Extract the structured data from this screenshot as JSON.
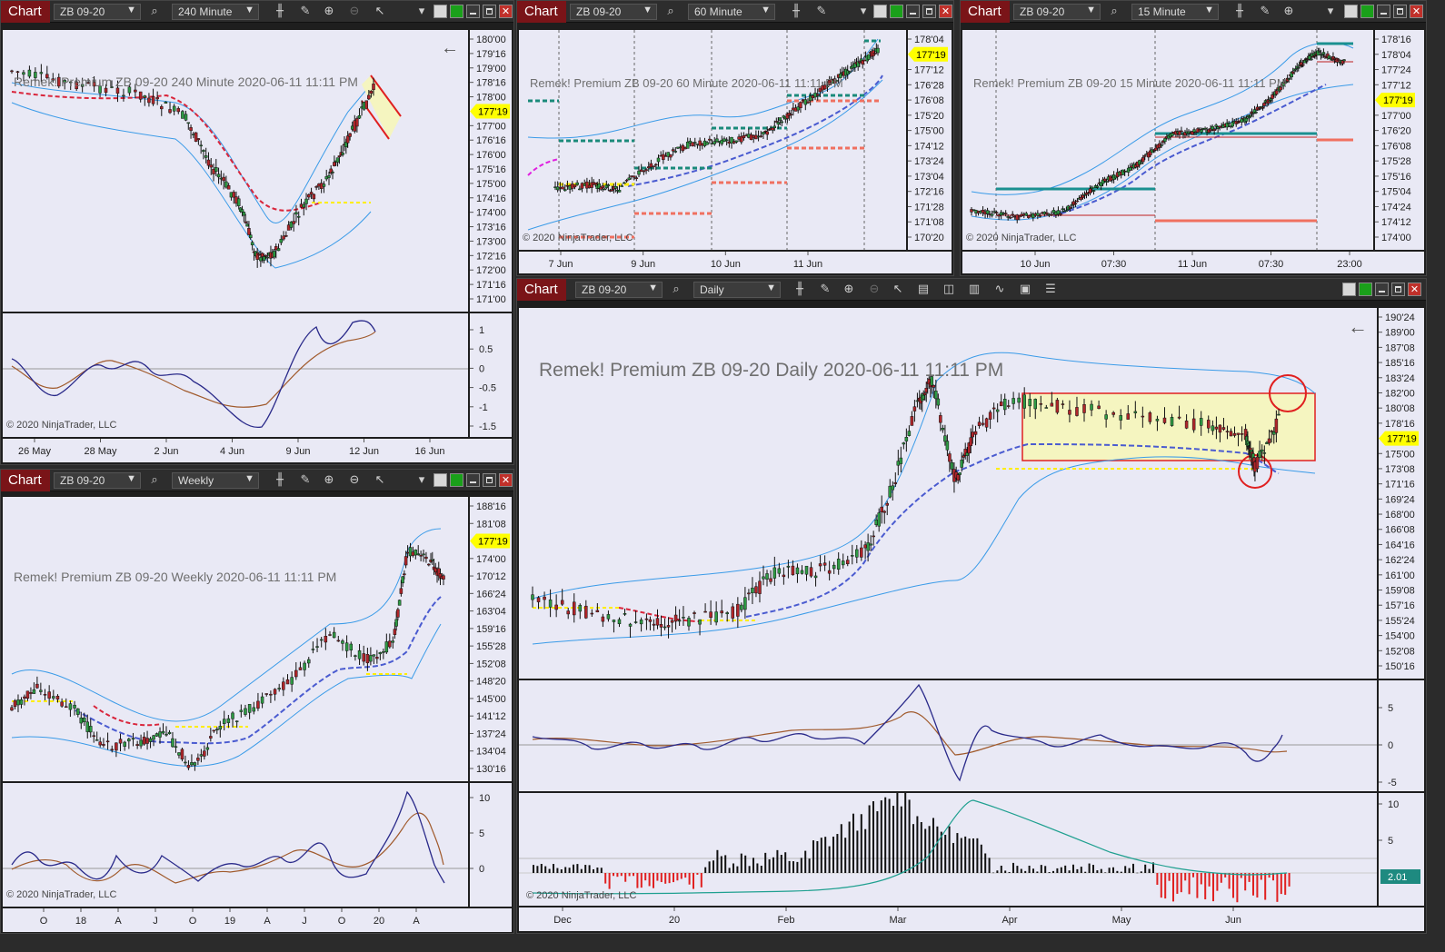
{
  "windows": {
    "w240": {
      "tab": "Chart",
      "instrument": "ZB 09-20",
      "interval": "240 Minute",
      "header": "Remek!  Premium  ZB 09-20  240 Minute  2020-06-11 11:11 PM",
      "price_labels": [
        "180'00",
        "179'16",
        "179'00",
        "178'16",
        "178'00",
        "177'00",
        "176'16",
        "176'00",
        "175'16",
        "175'00",
        "174'16",
        "174'00",
        "173'16",
        "173'00",
        "172'16",
        "172'00",
        "171'16",
        "171'00"
      ],
      "osc_labels": [
        "1",
        "0.5",
        "0",
        "-0.5",
        "-1",
        "-1.5"
      ],
      "current_price": "177'19",
      "x_labels": [
        "26 May",
        "28 May",
        "2 Jun",
        "4 Jun",
        "9 Jun",
        "12 Jun",
        "16 Jun"
      ],
      "copyright": "© 2020 NinjaTrader, LLC"
    },
    "w60": {
      "tab": "Chart",
      "instrument": "ZB 09-20",
      "interval": "60 Minute",
      "header": "Remek!  Premium  ZB 09-20  60 Minute  2020-06-11 11:11 PM",
      "price_labels": [
        "178'04",
        "177'12",
        "176'28",
        "176'08",
        "175'20",
        "175'00",
        "174'12",
        "173'24",
        "173'04",
        "172'16",
        "171'28",
        "171'08",
        "170'20"
      ],
      "current_price": "177'19",
      "x_labels": [
        "7 Jun",
        "9 Jun",
        "10 Jun",
        "11 Jun"
      ],
      "copyright": "© 2020 NinjaTrader, LLC"
    },
    "w15": {
      "tab": "Chart",
      "instrument": "ZB 09-20",
      "interval": "15 Minute",
      "header": "Remek!  Premium  ZB 09-20  15 Minute  2020-06-11 11:11 PM",
      "price_labels": [
        "178'16",
        "178'04",
        "177'24",
        "177'12",
        "177'00",
        "176'20",
        "176'08",
        "175'28",
        "175'16",
        "175'04",
        "174'24",
        "174'12",
        "174'00"
      ],
      "current_price": "177'19",
      "x_labels": [
        "10 Jun",
        "07:30",
        "11 Jun",
        "07:30",
        "23:00"
      ],
      "copyright": "© 2020 NinjaTrader, LLC"
    },
    "wweekly": {
      "tab": "Chart",
      "instrument": "ZB 09-20",
      "interval": "Weekly",
      "header": "Remek!  Premium  ZB 09-20  Weekly  2020-06-11 11:11 PM",
      "price_labels": [
        "188'16",
        "181'08",
        "177'19",
        "174'00",
        "170'12",
        "166'24",
        "163'04",
        "159'16",
        "155'28",
        "152'08",
        "148'20",
        "145'00",
        "141'12",
        "137'24",
        "134'04",
        "130'16"
      ],
      "osc_labels": [
        "10",
        "5",
        "0"
      ],
      "current_price": "177'19",
      "x_labels": [
        "O",
        "18",
        "A",
        "J",
        "O",
        "19",
        "A",
        "J",
        "O",
        "20",
        "A"
      ],
      "copyright": "© 2020 NinjaTrader, LLC"
    },
    "wdaily": {
      "tab": "Chart",
      "instrument": "ZB 09-20",
      "interval": "Daily",
      "header": "Remek!  Premium  ZB 09-20  Daily  2020-06-11 11:11 PM",
      "price_labels": [
        "190'24",
        "189'00",
        "187'08",
        "185'16",
        "183'24",
        "182'00",
        "180'08",
        "178'16",
        "177'19",
        "175'00",
        "173'08",
        "171'16",
        "169'24",
        "168'00",
        "166'08",
        "164'16",
        "162'24",
        "161'00",
        "159'08",
        "157'16",
        "155'24",
        "154'00",
        "152'08",
        "150'16"
      ],
      "osc_labels": [
        "5",
        "0",
        "-5"
      ],
      "hist_labels": [
        "10",
        "5"
      ],
      "hist_value": "2.01",
      "current_price": "177'19",
      "x_labels": [
        "Dec",
        "20",
        "Feb",
        "Mar",
        "Apr",
        "May",
        "Jun"
      ],
      "copyright": "© 2020 NinjaTrader, LLC"
    }
  },
  "colors": {
    "tab_bg": "#7a1418",
    "plot_bg": "#e9e9f5",
    "band": "#3a9be8",
    "bull": "#2e9a44",
    "bear": "#b0252a",
    "highlight": "#f5f5c0",
    "price_tag": "#ffff00"
  },
  "icons": [
    "search-icon",
    "bar-style-icon",
    "pencil-icon",
    "zoom-in-icon",
    "zoom-out-icon",
    "pointer-icon",
    "chevron-down-icon",
    "minimize-icon",
    "maximize-icon",
    "close-icon"
  ]
}
